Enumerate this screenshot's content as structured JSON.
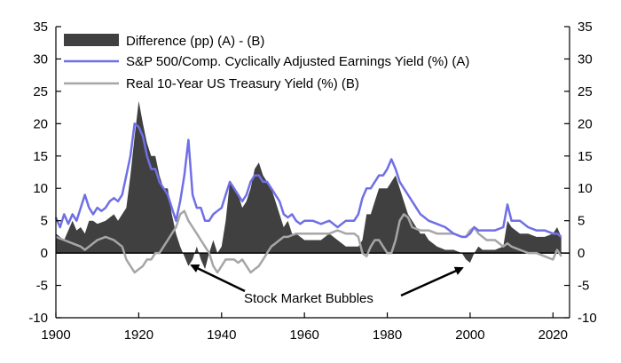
{
  "chart_data": {
    "type": "area",
    "title": "",
    "xlabel": "",
    "ylabel": "",
    "xlim": [
      1900,
      2024
    ],
    "ylim": [
      -10,
      35
    ],
    "x_ticks": [
      1900,
      1920,
      1940,
      1960,
      1980,
      2000,
      2020
    ],
    "y_ticks": [
      -10,
      -5,
      0,
      5,
      10,
      15,
      20,
      25,
      30,
      35
    ],
    "legend_position": "top-left",
    "grid": false,
    "colors": {
      "difference": "#404040",
      "earnings_yield": "#6f6fe6",
      "treasury_yield": "#a6a6a6",
      "axis": "#000000"
    },
    "series": [
      {
        "name": "Difference (pp) (A) - (B)",
        "type": "area",
        "x": [
          1900,
          1902,
          1904,
          1905,
          1906,
          1907,
          1908,
          1909,
          1910,
          1912,
          1914,
          1915,
          1916,
          1917,
          1918,
          1919,
          1920,
          1921,
          1922,
          1923,
          1924,
          1925,
          1926,
          1927,
          1928,
          1929,
          1930,
          1931,
          1932,
          1933,
          1934,
          1935,
          1936,
          1937,
          1938,
          1939,
          1940,
          1941,
          1942,
          1943,
          1944,
          1945,
          1946,
          1947,
          1948,
          1949,
          1950,
          1951,
          1952,
          1953,
          1954,
          1955,
          1956,
          1957,
          1958,
          1959,
          1960,
          1962,
          1964,
          1966,
          1968,
          1970,
          1972,
          1973,
          1974,
          1975,
          1976,
          1977,
          1978,
          1979,
          1980,
          1981,
          1982,
          1983,
          1984,
          1985,
          1986,
          1987,
          1988,
          1989,
          1990,
          1992,
          1994,
          1996,
          1998,
          1999,
          2000,
          2001,
          2002,
          2003,
          2004,
          2006,
          2008,
          2009,
          2010,
          2012,
          2014,
          2016,
          2018,
          2020,
          2021,
          2022
        ],
        "values": [
          3,
          2,
          5,
          3.5,
          4,
          3,
          5,
          5,
          4.5,
          5,
          6,
          5,
          6,
          7,
          12,
          18,
          23.5,
          20,
          17,
          15,
          15,
          12,
          10,
          10,
          6,
          3,
          1,
          -0.5,
          -2,
          -1,
          1,
          -1,
          -2.5,
          0,
          2,
          0,
          1,
          5,
          11,
          10,
          9,
          7,
          8,
          10,
          13,
          14,
          12,
          11,
          10,
          8,
          6,
          4,
          5,
          3,
          3,
          2.5,
          2,
          2,
          2,
          3,
          2,
          1,
          1,
          1,
          2,
          6,
          6,
          8,
          10,
          10,
          10,
          11,
          12,
          10,
          8,
          6,
          5,
          4,
          3,
          3,
          2,
          1,
          0.5,
          0.5,
          0,
          -1,
          -1.5,
          0,
          1,
          0.5,
          0.5,
          0.5,
          1,
          5,
          4,
          3,
          3,
          2.5,
          2.5,
          3,
          4,
          2.5
        ]
      },
      {
        "name": "S&P 500/Comp. Cyclically Adjusted Earnings Yield (%) (A)",
        "type": "line",
        "x": [
          1900,
          1901,
          1902,
          1903,
          1904,
          1905,
          1906,
          1907,
          1908,
          1909,
          1910,
          1911,
          1912,
          1913,
          1914,
          1915,
          1916,
          1917,
          1918,
          1919,
          1920,
          1921,
          1922,
          1923,
          1924,
          1925,
          1926,
          1927,
          1928,
          1929,
          1930,
          1931,
          1932,
          1933,
          1934,
          1935,
          1936,
          1937,
          1938,
          1939,
          1940,
          1941,
          1942,
          1943,
          1944,
          1945,
          1946,
          1947,
          1948,
          1949,
          1950,
          1951,
          1952,
          1953,
          1954,
          1955,
          1956,
          1957,
          1958,
          1959,
          1960,
          1962,
          1964,
          1966,
          1968,
          1970,
          1972,
          1973,
          1974,
          1975,
          1976,
          1977,
          1978,
          1979,
          1980,
          1981,
          1982,
          1983,
          1984,
          1985,
          1986,
          1987,
          1988,
          1989,
          1990,
          1992,
          1994,
          1996,
          1998,
          1999,
          2000,
          2001,
          2002,
          2003,
          2004,
          2006,
          2008,
          2009,
          2010,
          2012,
          2014,
          2016,
          2018,
          2020,
          2021,
          2022
        ],
        "values": [
          5.5,
          4,
          6,
          4.5,
          6,
          5,
          7,
          9,
          7,
          6,
          7,
          6.5,
          7,
          8,
          8.5,
          8,
          9,
          12,
          15,
          20,
          19.5,
          18,
          15,
          13,
          13,
          11,
          10,
          9,
          7,
          5,
          8,
          12,
          17.5,
          9,
          7,
          7,
          5,
          5,
          6,
          6.5,
          7,
          9,
          11,
          10,
          9,
          8,
          9,
          11,
          12,
          12,
          11,
          11,
          10,
          9,
          8,
          6,
          5.5,
          6,
          5,
          4.5,
          5,
          5,
          4.5,
          5,
          4,
          5,
          5,
          6,
          8.5,
          10,
          10,
          11,
          12,
          12,
          13,
          14.5,
          13,
          11,
          10,
          9,
          8,
          7,
          6,
          5.5,
          5,
          4.5,
          4,
          3,
          2.5,
          2.5,
          3,
          4,
          3.5,
          3.5,
          3.5,
          3.5,
          4,
          7.5,
          5,
          5,
          4,
          3.5,
          3.5,
          3,
          3,
          2.5
        ]
      },
      {
        "name": "Real 10-Year US Treasury Yield (%) (B)",
        "type": "line",
        "x": [
          1900,
          1902,
          1904,
          1906,
          1907,
          1908,
          1910,
          1912,
          1914,
          1916,
          1917,
          1918,
          1919,
          1920,
          1921,
          1922,
          1923,
          1924,
          1925,
          1926,
          1927,
          1928,
          1929,
          1930,
          1931,
          1932,
          1933,
          1934,
          1935,
          1936,
          1937,
          1938,
          1939,
          1940,
          1941,
          1942,
          1943,
          1944,
          1945,
          1946,
          1947,
          1948,
          1949,
          1950,
          1951,
          1952,
          1953,
          1954,
          1955,
          1956,
          1958,
          1960,
          1962,
          1964,
          1966,
          1968,
          1970,
          1972,
          1973,
          1974,
          1975,
          1976,
          1977,
          1978,
          1979,
          1980,
          1981,
          1982,
          1983,
          1984,
          1985,
          1986,
          1988,
          1990,
          1992,
          1994,
          1996,
          1998,
          1999,
          2000,
          2001,
          2002,
          2004,
          2006,
          2008,
          2009,
          2010,
          2012,
          2014,
          2016,
          2018,
          2020,
          2021,
          2022
        ],
        "values": [
          2.5,
          2,
          1.5,
          1,
          0.5,
          1,
          2,
          2.5,
          2,
          1,
          -1,
          -2,
          -3,
          -2.5,
          -2,
          -1,
          -1,
          0,
          0,
          1,
          2,
          3,
          4,
          6,
          6.5,
          5,
          4,
          3,
          2,
          1,
          0,
          -2,
          -3,
          -2,
          -1,
          -1,
          -1,
          -1.5,
          -1,
          -2,
          -3,
          -2.5,
          -2,
          -1,
          0,
          1,
          1.5,
          2,
          2.5,
          2.5,
          3,
          3,
          3,
          3,
          3,
          3.5,
          3,
          3,
          2.5,
          0,
          -0.5,
          1,
          2,
          2,
          1,
          0,
          0,
          2,
          5,
          6,
          5.5,
          4,
          3.5,
          3.5,
          3,
          3,
          3,
          2.5,
          2.5,
          3.5,
          4,
          3,
          2,
          2,
          1,
          1.5,
          1,
          0.5,
          0,
          0,
          -0.5,
          -1,
          0.5,
          -0.5
        ]
      }
    ],
    "annotations": [
      {
        "text": "Stock Market Bubbles",
        "arrows_to_x": [
          1931,
          2000
        ]
      }
    ]
  }
}
